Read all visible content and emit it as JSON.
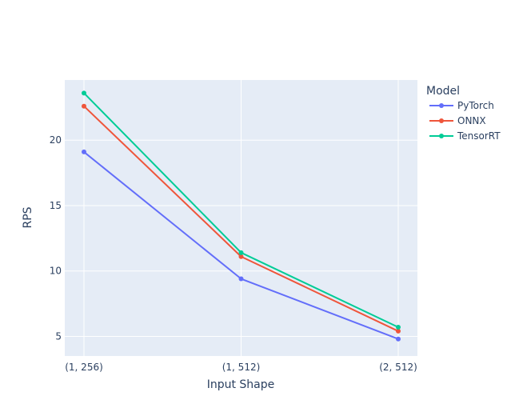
{
  "chart_data": {
    "type": "line",
    "categories": [
      "(1, 256)",
      "(1, 512)",
      "(2, 512)"
    ],
    "series": [
      {
        "name": "PyTorch",
        "values": [
          19.1,
          9.4,
          4.8
        ],
        "color": "#636efa"
      },
      {
        "name": "ONNX",
        "values": [
          22.6,
          11.1,
          5.4
        ],
        "color": "#ef553b"
      },
      {
        "name": "TensorRT",
        "values": [
          23.6,
          11.4,
          5.7
        ],
        "color": "#00cc96"
      }
    ],
    "xlabel": "Input Shape",
    "ylabel": "RPS",
    "ylim": [
      3.5,
      24.6
    ],
    "yticks": [
      5,
      10,
      15,
      20
    ],
    "legend_title": "Model",
    "legend_position": "top-right",
    "grid": true,
    "plot_background": "#e5ecf6",
    "grid_color": "#ffffff"
  }
}
